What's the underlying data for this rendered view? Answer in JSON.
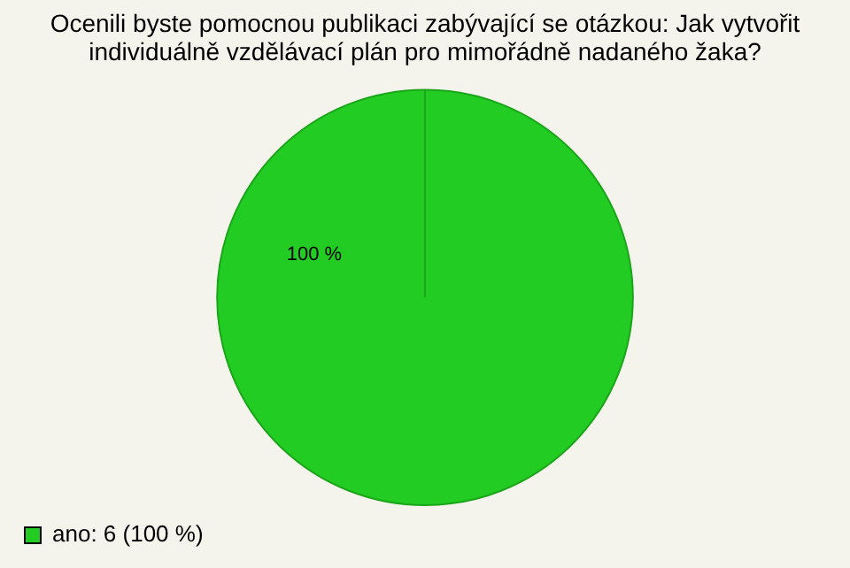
{
  "chart_data": {
    "type": "pie",
    "title": [
      "Ocenili byste pomocnou publikaci zabývající se otázkou: Jak vytvořit",
      "individuálně vzdělávací plán pro mimořádně nadaného žaka?"
    ],
    "categories": [
      "ano: 6 (100 %)"
    ],
    "values": [
      100
    ],
    "colors": [
      "#22cc22"
    ],
    "value_labels": [
      "100 %"
    ],
    "legend": "bottom left"
  }
}
